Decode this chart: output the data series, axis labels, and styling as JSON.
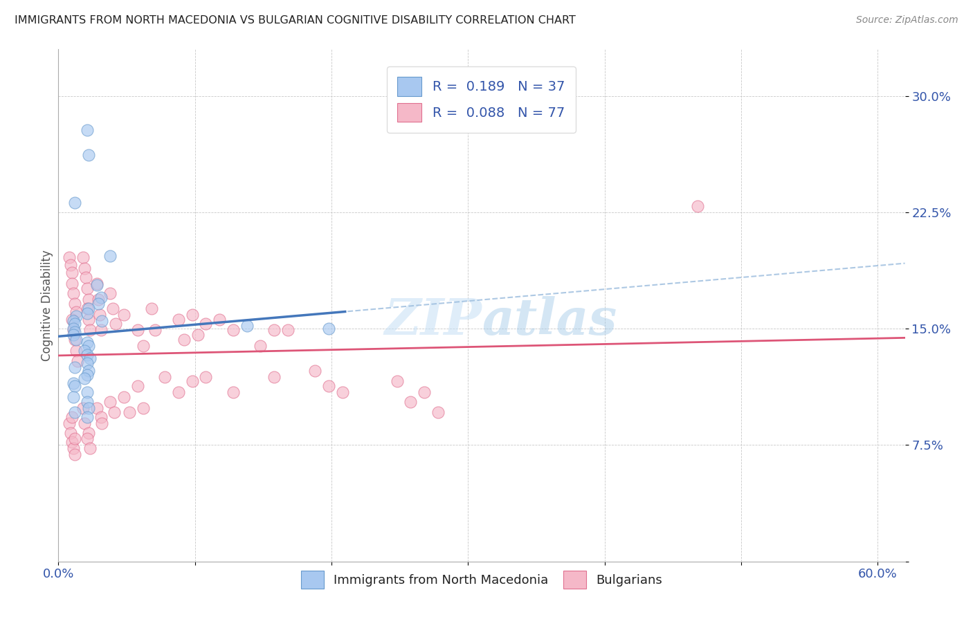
{
  "title": "IMMIGRANTS FROM NORTH MACEDONIA VS BULGARIAN COGNITIVE DISABILITY CORRELATION CHART",
  "source": "Source: ZipAtlas.com",
  "ylabel_label": "Cognitive Disability",
  "y_ticks": [
    0.0,
    0.075,
    0.15,
    0.225,
    0.3
  ],
  "y_tick_labels": [
    "",
    "7.5%",
    "15.0%",
    "22.5%",
    "30.0%"
  ],
  "xlim": [
    0.0,
    0.62
  ],
  "ylim": [
    0.0,
    0.33
  ],
  "R_blue": 0.189,
  "N_blue": 37,
  "R_pink": 0.088,
  "N_pink": 77,
  "color_blue_fill": "#a8c8f0",
  "color_pink_fill": "#f5b8c8",
  "color_blue_edge": "#6699cc",
  "color_pink_edge": "#e07090",
  "color_blue_line": "#4477bb",
  "color_pink_line": "#dd5577",
  "color_blue_dashed": "#99bbdd",
  "blue_scatter_x": [
    0.021,
    0.022,
    0.012,
    0.038,
    0.028,
    0.031,
    0.029,
    0.022,
    0.021,
    0.013,
    0.011,
    0.012,
    0.011,
    0.012,
    0.011,
    0.013,
    0.021,
    0.022,
    0.019,
    0.021,
    0.023,
    0.021,
    0.012,
    0.022,
    0.021,
    0.019,
    0.032,
    0.138,
    0.198,
    0.011,
    0.012,
    0.021,
    0.011,
    0.021,
    0.022,
    0.012,
    0.021
  ],
  "blue_scatter_y": [
    0.278,
    0.262,
    0.231,
    0.197,
    0.178,
    0.17,
    0.166,
    0.163,
    0.16,
    0.158,
    0.155,
    0.153,
    0.15,
    0.148,
    0.146,
    0.143,
    0.141,
    0.139,
    0.136,
    0.133,
    0.131,
    0.128,
    0.125,
    0.123,
    0.12,
    0.118,
    0.155,
    0.152,
    0.15,
    0.115,
    0.113,
    0.109,
    0.106,
    0.103,
    0.099,
    0.096,
    0.093
  ],
  "pink_scatter_x": [
    0.008,
    0.009,
    0.01,
    0.01,
    0.011,
    0.012,
    0.013,
    0.01,
    0.011,
    0.012,
    0.013,
    0.014,
    0.018,
    0.019,
    0.02,
    0.021,
    0.022,
    0.021,
    0.022,
    0.023,
    0.028,
    0.029,
    0.03,
    0.031,
    0.038,
    0.04,
    0.042,
    0.048,
    0.058,
    0.062,
    0.068,
    0.071,
    0.088,
    0.092,
    0.098,
    0.102,
    0.108,
    0.118,
    0.128,
    0.148,
    0.158,
    0.168,
    0.468,
    0.008,
    0.009,
    0.01,
    0.011,
    0.012,
    0.01,
    0.012,
    0.018,
    0.019,
    0.022,
    0.021,
    0.023,
    0.028,
    0.031,
    0.032,
    0.038,
    0.041,
    0.048,
    0.052,
    0.058,
    0.062,
    0.078,
    0.088,
    0.098,
    0.108,
    0.128,
    0.158,
    0.188,
    0.198,
    0.208,
    0.248,
    0.258,
    0.268,
    0.278
  ],
  "pink_scatter_y": [
    0.196,
    0.191,
    0.186,
    0.179,
    0.173,
    0.166,
    0.161,
    0.156,
    0.149,
    0.143,
    0.136,
    0.129,
    0.196,
    0.189,
    0.183,
    0.176,
    0.169,
    0.163,
    0.156,
    0.149,
    0.179,
    0.169,
    0.159,
    0.149,
    0.173,
    0.163,
    0.153,
    0.159,
    0.149,
    0.139,
    0.163,
    0.149,
    0.156,
    0.143,
    0.159,
    0.146,
    0.153,
    0.156,
    0.149,
    0.139,
    0.149,
    0.149,
    0.229,
    0.089,
    0.083,
    0.077,
    0.073,
    0.069,
    0.093,
    0.079,
    0.099,
    0.089,
    0.083,
    0.079,
    0.073,
    0.099,
    0.093,
    0.089,
    0.103,
    0.096,
    0.106,
    0.096,
    0.113,
    0.099,
    0.119,
    0.109,
    0.116,
    0.119,
    0.109,
    0.119,
    0.123,
    0.113,
    0.109,
    0.116,
    0.103,
    0.109,
    0.096
  ]
}
